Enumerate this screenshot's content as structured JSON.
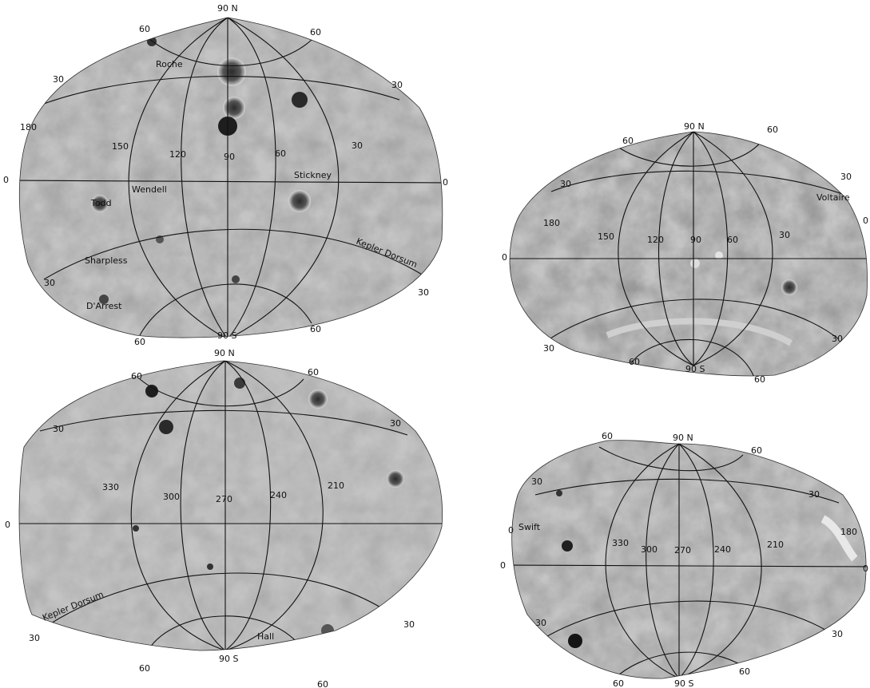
{
  "maps": [
    {
      "id": "top-left",
      "labels": {
        "north": "90 N",
        "south": "90 S",
        "lat_n_left": "60",
        "lat_n_right": "60",
        "lat_30_left": "30",
        "lat_30_right": "30",
        "eq_left": "0",
        "eq_right": "0",
        "lat_s30_left": "30",
        "lat_s30_right": "30",
        "lat_s60_left": "60",
        "lat_s60_right": "60",
        "lon_edge": "180",
        "lon_1": "150",
        "lon_2": "120",
        "lon_3": "90",
        "lon_4": "60",
        "lon_5": "30"
      },
      "features": [
        "Roche",
        "Stickney",
        "Wendell",
        "Todd",
        "Sharpless",
        "Kepler Dorsum",
        "D'Arrest"
      ]
    },
    {
      "id": "bottom-left",
      "labels": {
        "north": "90 N",
        "south": "90 S",
        "lat_n_left": "60",
        "lat_n_right": "60",
        "lat_30_left": "30",
        "lat_30_right": "30",
        "eq_left": "0",
        "lat_s30_left": "30",
        "lat_s30_right": "30",
        "lat_s60_left": "60",
        "lat_s60_right": "60",
        "lon_1": "330",
        "lon_2": "300",
        "lon_3": "270",
        "lon_4": "240",
        "lon_5": "210"
      },
      "features": [
        "Kepler Dorsum",
        "Hall"
      ]
    },
    {
      "id": "top-right",
      "labels": {
        "north": "90 N",
        "south": "90 S",
        "lat_n_left": "60",
        "lat_n_right": "60",
        "lat_30_left": "30",
        "lat_30_right": "30",
        "eq_left": "0",
        "eq_right": "0",
        "lat_s30_left": "30",
        "lat_s30_right": "30",
        "lat_s60_left": "60",
        "lat_s60_right": "60",
        "lon_edge": "180",
        "lon_1": "150",
        "lon_2": "120",
        "lon_3": "90",
        "lon_4": "60",
        "lon_5": "30"
      },
      "features": [
        "Voltaire"
      ]
    },
    {
      "id": "bottom-right",
      "labels": {
        "north": "90 N",
        "south": "90 S",
        "lat_n_left": "60",
        "lat_n_right": "60",
        "lat_30_left": "30",
        "lat_30_right": "30",
        "eq_left": "0",
        "eq_right": "0",
        "lat_s30_left": "30",
        "lat_s30_right": "30",
        "lat_s60_left": "60",
        "lat_s60_right": "60",
        "lon_edge": "180",
        "lon_1": "330",
        "lon_2": "300",
        "lon_3": "270",
        "lon_4": "240",
        "lon_5": "210",
        "lon_0": "0"
      },
      "features": [
        "Swift"
      ]
    }
  ],
  "colors": {
    "surface_light": "#b4b4b4",
    "surface_mid": "#8e8e8e",
    "surface_dark": "#5a5a5a",
    "grid": "#111111"
  }
}
